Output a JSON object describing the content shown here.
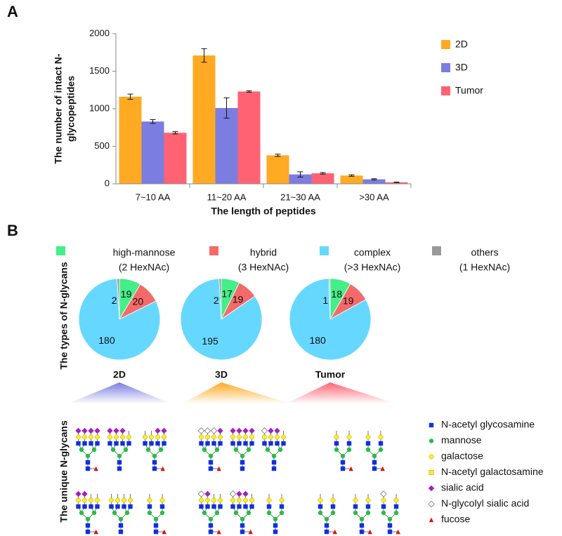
{
  "panel_labels": [
    "A",
    "B"
  ],
  "chart_data": [
    {
      "type": "bar",
      "ylabel": [
        "The number of intact N-",
        "glycopeptides"
      ],
      "xlabel": "The length of peptides",
      "categories": [
        "7~10 AA",
        "11~20 AA",
        "21~30 AA",
        ">30 AA"
      ],
      "series": [
        {
          "name": "2D",
          "color": "#ffaa22",
          "values": [
            1160,
            1710,
            380,
            110
          ],
          "errors": [
            35,
            90,
            15,
            10
          ]
        },
        {
          "name": "3D",
          "color": "#7b7de0",
          "values": [
            830,
            1010,
            125,
            60
          ],
          "errors": [
            25,
            135,
            35,
            8
          ]
        },
        {
          "name": "Tumor",
          "color": "#ff6373",
          "values": [
            680,
            1230,
            140,
            20
          ],
          "errors": [
            15,
            10,
            10,
            3
          ]
        }
      ],
      "ylim": [
        0,
        2000
      ],
      "yticks": [
        0,
        500,
        1000,
        1500,
        2000
      ],
      "legend": "upper right"
    },
    {
      "type": "pie",
      "title": "2D",
      "values": [
        19,
        20,
        180,
        2
      ]
    },
    {
      "type": "pie",
      "title": "3D",
      "values": [
        17,
        19,
        195,
        2
      ]
    },
    {
      "type": "pie",
      "title": "Tumor",
      "values": [
        18,
        19,
        180,
        1
      ]
    }
  ],
  "pie_legend": {
    "categories": [
      "high-mannose",
      "hybrid",
      "complex",
      "others"
    ],
    "notes": [
      "(2 HexNAc)",
      "(3 HexNAc)",
      "(>3 HexNAc)",
      "(1 HexNAc)"
    ],
    "colors": [
      "#44ee88",
      "#f46a6a",
      "#66d8ff",
      "#999999"
    ]
  },
  "side_labels": [
    "The types of N-glycans",
    "The unique N-glycans"
  ],
  "glycan_legend": [
    "N-acetyl glycosamine",
    "mannose",
    "galactose",
    "N-acetyl galactosamine",
    "sialic acid",
    "N-glycolyl sialic acid",
    "fucose"
  ]
}
